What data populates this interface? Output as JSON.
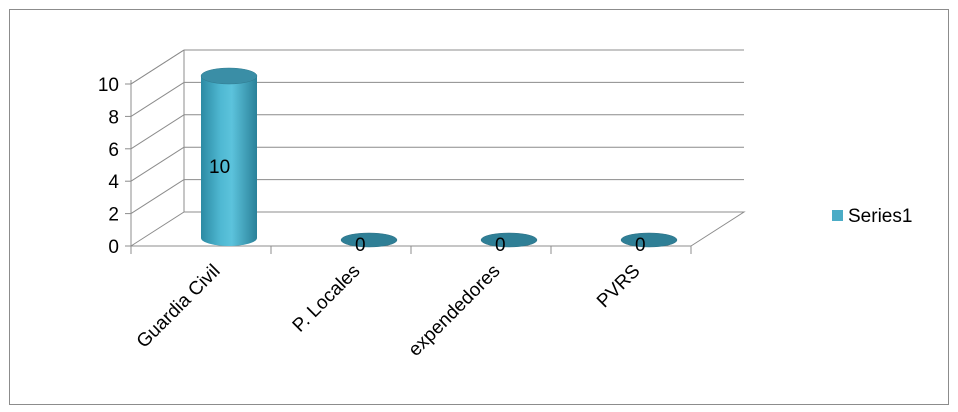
{
  "chart_data": {
    "type": "bar",
    "categories": [
      "Guardia Civil",
      "P. Locales",
      "expendedores",
      "PVRS"
    ],
    "series": [
      {
        "name": "Series1",
        "values": [
          10,
          0,
          0,
          0
        ],
        "color": "#4bacc6"
      }
    ],
    "data_labels": [
      "10",
      "0",
      "0",
      "0"
    ],
    "y_ticks": [
      "0",
      "2",
      "4",
      "6",
      "8",
      "10"
    ],
    "ylim": [
      0,
      10
    ],
    "grid": true,
    "legend": "right",
    "style": "3d-cylinder"
  }
}
